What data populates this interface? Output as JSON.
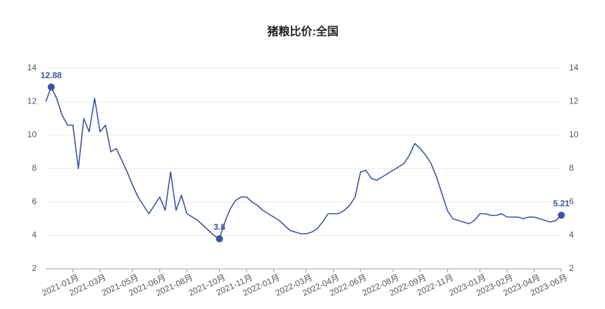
{
  "chart_data": {
    "type": "line",
    "title": "猪粮比价:全国",
    "categories": [
      null,
      null,
      null,
      null,
      null,
      "2021-01月",
      null,
      null,
      null,
      null,
      "2021-03月",
      null,
      null,
      null,
      null,
      null,
      "2021-05月",
      null,
      null,
      null,
      null,
      "2021-06月",
      null,
      null,
      null,
      null,
      "2021-08月",
      null,
      null,
      null,
      null,
      null,
      "2021-10月",
      null,
      null,
      null,
      null,
      "2021-11月",
      null,
      null,
      null,
      null,
      "2022-01月",
      null,
      null,
      null,
      null,
      null,
      "2022-03月",
      null,
      null,
      null,
      null,
      "2022-04月",
      null,
      null,
      null,
      null,
      "2022-06月",
      null,
      null,
      null,
      null,
      null,
      "2022-08月",
      null,
      null,
      null,
      null,
      "2022-09月",
      null,
      null,
      null,
      null,
      "2022-11月",
      null,
      null,
      null,
      null,
      null,
      "2023-01月",
      null,
      null,
      null,
      null,
      "2023-02月",
      null,
      null,
      null,
      null,
      "2023-04月",
      null,
      null,
      null,
      null,
      "2023-06月"
    ],
    "values": [
      12.0,
      12.88,
      12.2,
      11.2,
      10.6,
      10.6,
      8.0,
      11.0,
      10.2,
      12.2,
      10.2,
      10.6,
      9.0,
      9.2,
      8.5,
      7.8,
      7.0,
      6.3,
      5.8,
      5.3,
      5.8,
      6.3,
      5.5,
      7.8,
      5.5,
      6.4,
      5.3,
      5.1,
      4.9,
      4.6,
      4.3,
      4.0,
      3.8,
      4.8,
      5.6,
      6.1,
      6.3,
      6.3,
      6.0,
      5.8,
      5.5,
      5.3,
      5.1,
      4.9,
      4.6,
      4.3,
      4.2,
      4.1,
      4.1,
      4.2,
      4.4,
      4.8,
      5.3,
      5.3,
      5.3,
      5.5,
      5.8,
      6.3,
      7.8,
      7.9,
      7.4,
      7.3,
      7.5,
      7.7,
      7.9,
      8.1,
      8.3,
      8.8,
      9.5,
      9.2,
      8.8,
      8.3,
      7.5,
      6.5,
      5.5,
      5.0,
      4.9,
      4.8,
      4.7,
      4.9,
      5.3,
      5.3,
      5.2,
      5.2,
      5.3,
      5.1,
      5.1,
      5.1,
      5.0,
      5.1,
      5.1,
      5.0,
      4.9,
      4.8,
      4.9,
      5.21
    ],
    "value_labels": [
      null,
      "12.88",
      null,
      null,
      null,
      null,
      null,
      null,
      null,
      null,
      null,
      null,
      null,
      null,
      null,
      null,
      null,
      null,
      null,
      null,
      null,
      null,
      null,
      null,
      null,
      null,
      null,
      null,
      null,
      null,
      null,
      null,
      "3.8",
      null,
      null,
      null,
      null,
      null,
      null,
      null,
      null,
      null,
      null,
      null,
      null,
      null,
      null,
      null,
      null,
      null,
      null,
      null,
      null,
      null,
      null,
      null,
      null,
      null,
      null,
      null,
      null,
      null,
      null,
      null,
      null,
      null,
      null,
      null,
      null,
      null,
      null,
      null,
      null,
      null,
      null,
      null,
      null,
      null,
      null,
      null,
      null,
      null,
      null,
      null,
      null,
      null,
      null,
      null,
      null,
      null,
      null,
      null,
      null,
      null,
      null,
      "5.21"
    ],
    "color": "#3f51a3",
    "ylim": [
      2,
      14
    ],
    "yticks": [
      2,
      4,
      6,
      8,
      10,
      12,
      14
    ],
    "y2lim": [
      2,
      14
    ],
    "y2ticks": [
      2,
      4,
      6,
      8,
      10,
      12,
      14
    ],
    "grid": true
  }
}
